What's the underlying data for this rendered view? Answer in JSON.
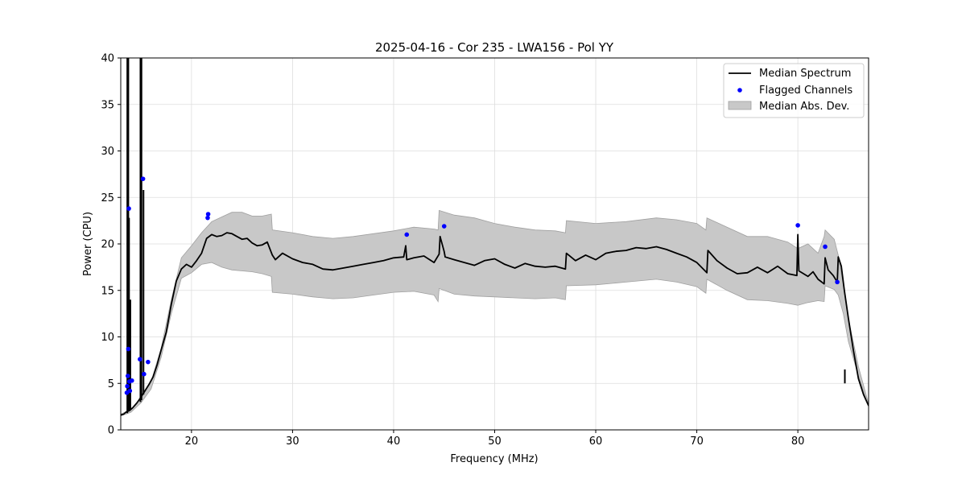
{
  "chart_data": {
    "type": "line",
    "title": "2025-04-16 - Cor 235 - LWA156 - Pol YY",
    "xlabel": "Frequency (MHz)",
    "ylabel": "Power (CPU)",
    "xlim": [
      13,
      87
    ],
    "ylim": [
      0,
      40
    ],
    "xticks": [
      20,
      30,
      40,
      50,
      60,
      70,
      80
    ],
    "yticks": [
      0,
      5,
      10,
      15,
      20,
      25,
      30,
      35,
      40
    ],
    "grid": true,
    "legend_position": "top-right",
    "colors": {
      "median": "#000000",
      "flagged": "#0000ff",
      "mad_fill": "#c8c8c8",
      "mad_edge": "#a0a0a0"
    },
    "legend": [
      {
        "label": "Median Spectrum",
        "kind": "line"
      },
      {
        "label": "Flagged Channels",
        "kind": "marker"
      },
      {
        "label": "Median Abs. Dev.",
        "kind": "patch"
      }
    ],
    "series": [
      {
        "name": "Median Spectrum",
        "x": [
          13.0,
          13.3,
          13.5,
          13.7,
          13.9,
          14.2,
          14.6,
          14.8,
          15.1,
          15.4,
          15.8,
          16.2,
          16.6,
          17.0,
          17.5,
          18.0,
          18.5,
          19.0,
          19.5,
          20.0,
          20.5,
          21.0,
          21.5,
          22.0,
          22.5,
          23.0,
          23.5,
          24.0,
          24.5,
          25.0,
          25.5,
          26.0,
          26.5,
          27.0,
          27.5,
          28.0,
          28.3,
          29.0,
          30.0,
          31.0,
          32.0,
          33.0,
          34.0,
          35.0,
          36.0,
          37.0,
          38.0,
          39.0,
          40.0,
          41.0,
          41.2,
          41.3,
          42.0,
          43.0,
          44.0,
          44.5,
          44.6,
          45.0,
          45.1,
          46.0,
          47.0,
          48.0,
          49.0,
          50.0,
          51.0,
          52.0,
          53.0,
          54.0,
          55.0,
          56.0,
          57.0,
          57.1,
          58.0,
          59.0,
          60.0,
          61.0,
          62.0,
          63.0,
          64.0,
          65.0,
          66.0,
          67.0,
          68.0,
          69.0,
          70.0,
          71.0,
          71.1,
          72.0,
          73.0,
          74.0,
          75.0,
          76.0,
          77.0,
          78.0,
          79.0,
          79.9,
          80.0,
          80.1,
          81.0,
          81.5,
          82.0,
          82.6,
          82.7,
          83.0,
          83.5,
          83.9,
          84.0,
          84.3,
          84.6,
          85.0,
          85.5,
          86.0,
          86.5,
          87.0
        ],
        "values": [
          1.6,
          1.7,
          1.9,
          2.0,
          2.1,
          2.4,
          2.9,
          3.2,
          3.7,
          4.2,
          4.9,
          5.7,
          7.0,
          8.6,
          10.5,
          13.5,
          16.0,
          17.3,
          17.8,
          17.5,
          18.2,
          19.0,
          20.6,
          21.0,
          20.8,
          20.9,
          21.2,
          21.1,
          20.8,
          20.5,
          20.6,
          20.1,
          19.8,
          19.9,
          20.2,
          18.8,
          18.3,
          19.0,
          18.4,
          18.0,
          17.8,
          17.3,
          17.2,
          17.4,
          17.6,
          17.8,
          18.0,
          18.2,
          18.5,
          18.6,
          19.8,
          18.3,
          18.5,
          18.7,
          18.0,
          18.9,
          20.8,
          19.2,
          18.6,
          18.3,
          18.0,
          17.7,
          18.2,
          18.4,
          17.8,
          17.4,
          17.9,
          17.6,
          17.5,
          17.6,
          17.3,
          19.0,
          18.2,
          18.8,
          18.3,
          19.0,
          19.2,
          19.3,
          19.6,
          19.5,
          19.7,
          19.4,
          19.0,
          18.6,
          18.0,
          16.9,
          19.3,
          18.2,
          17.4,
          16.8,
          16.9,
          17.5,
          16.9,
          17.6,
          16.8,
          16.6,
          21.0,
          17.1,
          16.5,
          17.0,
          16.2,
          15.7,
          18.5,
          17.2,
          16.6,
          15.9,
          18.6,
          17.6,
          15.0,
          12.0,
          8.5,
          5.5,
          3.8,
          2.6
        ]
      },
      {
        "name": "Median Abs. Dev.",
        "x": [
          13.0,
          14.0,
          15.0,
          16.0,
          17.0,
          18.0,
          19.0,
          20.0,
          21.0,
          22.0,
          23.0,
          24.0,
          25.0,
          26.0,
          27.0,
          27.9,
          28.0,
          30.0,
          32.0,
          34.0,
          36.0,
          38.0,
          40.0,
          42.0,
          44.0,
          44.4,
          44.5,
          46.0,
          48.0,
          50.0,
          52.0,
          54.0,
          56.0,
          57.0,
          57.1,
          60.0,
          63.0,
          66.0,
          68.0,
          70.0,
          70.9,
          71.0,
          73.0,
          75.0,
          77.0,
          79.0,
          80.0,
          81.0,
          82.0,
          82.6,
          82.7,
          83.6,
          84.0,
          84.5,
          85.0,
          86.0,
          87.0
        ],
        "upper": [
          1.7,
          2.2,
          3.4,
          5.2,
          8.8,
          14.0,
          18.5,
          19.8,
          21.2,
          22.4,
          22.9,
          23.4,
          23.4,
          23.0,
          23.0,
          23.2,
          21.5,
          21.2,
          20.8,
          20.6,
          20.8,
          21.1,
          21.4,
          21.8,
          21.6,
          21.5,
          23.6,
          23.1,
          22.8,
          22.2,
          21.8,
          21.5,
          21.4,
          21.2,
          22.5,
          22.2,
          22.4,
          22.8,
          22.6,
          22.2,
          21.5,
          22.8,
          21.8,
          20.8,
          20.8,
          20.2,
          19.5,
          20.0,
          19.0,
          20.8,
          21.5,
          20.5,
          18.8,
          15.5,
          12.0,
          6.8,
          2.8
        ],
        "lower": [
          1.5,
          1.9,
          2.9,
          4.4,
          7.8,
          12.5,
          16.3,
          16.9,
          17.8,
          18.0,
          17.5,
          17.2,
          17.1,
          17.0,
          16.8,
          16.5,
          14.8,
          14.6,
          14.3,
          14.1,
          14.2,
          14.5,
          14.8,
          14.9,
          14.5,
          13.8,
          15.2,
          14.6,
          14.4,
          14.3,
          14.2,
          14.1,
          14.2,
          14.0,
          15.5,
          15.6,
          15.9,
          16.2,
          15.9,
          15.4,
          14.7,
          16.2,
          15.0,
          14.0,
          13.9,
          13.6,
          13.4,
          13.7,
          13.9,
          13.8,
          15.5,
          15.1,
          14.5,
          12.5,
          9.5,
          5.8,
          2.5
        ]
      },
      {
        "name": "Flagged Channels",
        "x": [
          13.6,
          13.65,
          13.7,
          13.75,
          13.8,
          13.85,
          13.9,
          14.1,
          14.9,
          15.2,
          15.3,
          15.7,
          21.6,
          21.65,
          41.3,
          45.0,
          80.0,
          82.7,
          83.9
        ],
        "values": [
          4.0,
          4.7,
          5.8,
          8.7,
          23.8,
          5.2,
          4.2,
          5.3,
          7.6,
          27.0,
          6.0,
          7.3,
          22.8,
          23.2,
          21.0,
          21.9,
          22.0,
          19.7,
          15.9
        ]
      },
      {
        "name": "Spikes",
        "segments": [
          [
            13.65,
            1.8,
            13.65,
            40.0
          ],
          [
            13.75,
            2.0,
            13.75,
            40.0
          ],
          [
            13.82,
            2.0,
            13.82,
            22.8
          ],
          [
            13.95,
            2.2,
            13.95,
            14.0
          ],
          [
            14.95,
            3.0,
            14.95,
            40.0
          ],
          [
            15.05,
            3.2,
            15.05,
            40.0
          ],
          [
            15.25,
            3.8,
            15.25,
            25.8
          ],
          [
            84.65,
            6.5,
            84.65,
            5.0
          ]
        ]
      }
    ]
  }
}
